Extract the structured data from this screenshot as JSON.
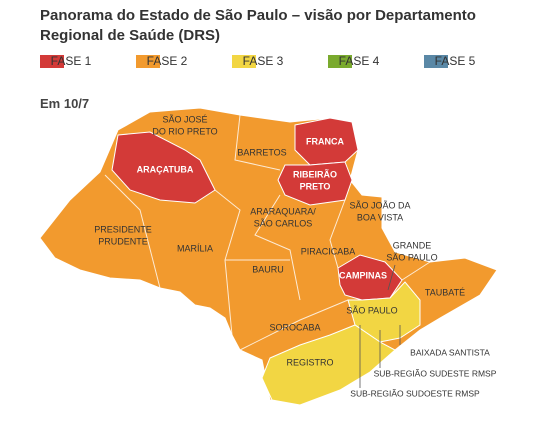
{
  "title": "Panorama do Estado de São Paulo – visão por Departamento Regional de Saúde (DRS)",
  "legend": [
    {
      "label": "FASE 1",
      "color": "#d33a38"
    },
    {
      "label": "FASE 2",
      "color": "#f29a2e"
    },
    {
      "label": "FASE 3",
      "color": "#f2d643"
    },
    {
      "label": "FASE 4",
      "color": "#7aaa2e"
    },
    {
      "label": "FASE 5",
      "color": "#5a88a6"
    }
  ],
  "date_label": "Em 10/7",
  "regions": [
    {
      "lines": [
        "SÃO JOSÉ",
        "DO RIO PRETO"
      ],
      "color": "#f29a2e"
    },
    {
      "lines": [
        "BARRETOS"
      ],
      "color": "#f29a2e"
    },
    {
      "lines": [
        "FRANCA"
      ],
      "color": "#d33a38"
    },
    {
      "lines": [
        "ARAÇATUBA"
      ],
      "color": "#d33a38"
    },
    {
      "lines": [
        "RIBEIRÃO",
        "PRETO"
      ],
      "color": "#d33a38"
    },
    {
      "lines": [
        "SÃO JOÃO DA",
        "BOA VISTA"
      ],
      "color": "#f29a2e"
    },
    {
      "lines": [
        "ARARAQUARA/",
        "SÃO CARLOS"
      ],
      "color": "#f29a2e"
    },
    {
      "lines": [
        "PRESIDENTE",
        "PRUDENTE"
      ],
      "color": "#f29a2e"
    },
    {
      "lines": [
        "MARÍLIA"
      ],
      "color": "#f29a2e"
    },
    {
      "lines": [
        "PIRACICABA"
      ],
      "color": "#f29a2e"
    },
    {
      "lines": [
        "GRANDE",
        "SÃO PAULO"
      ],
      "color": "#f2d643"
    },
    {
      "lines": [
        "CAMPINAS"
      ],
      "color": "#d33a38"
    },
    {
      "lines": [
        "BAURU"
      ],
      "color": "#f29a2e"
    },
    {
      "lines": [
        "TAUBATÉ"
      ],
      "color": "#f29a2e"
    },
    {
      "lines": [
        "SÃO PAULO"
      ],
      "color": "#f29a2e"
    },
    {
      "lines": [
        "SOROCABA"
      ],
      "color": "#f29a2e"
    },
    {
      "lines": [
        "REGISTRO"
      ],
      "color": "#f2d643"
    },
    {
      "lines": [
        "BAIXADA SANTISTA"
      ],
      "color": "#f2d643"
    },
    {
      "lines": [
        "SUB-REGIÃO SUDESTE RMSP"
      ],
      "color": "#f2d643"
    },
    {
      "lines": [
        "SUB-REGIÃO SUDOESTE RMSP"
      ],
      "color": "#f2d643"
    }
  ]
}
